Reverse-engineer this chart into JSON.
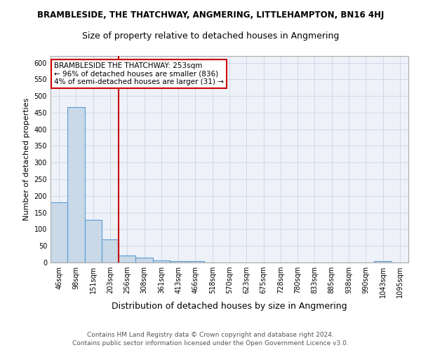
{
  "title": "BRAMBLESIDE, THE THATCHWAY, ANGMERING, LITTLEHAMPTON, BN16 4HJ",
  "subtitle": "Size of property relative to detached houses in Angmering",
  "xlabel": "Distribution of detached houses by size in Angmering",
  "ylabel": "Number of detached properties",
  "bin_labels": [
    "46sqm",
    "98sqm",
    "151sqm",
    "203sqm",
    "256sqm",
    "308sqm",
    "361sqm",
    "413sqm",
    "466sqm",
    "518sqm",
    "570sqm",
    "623sqm",
    "675sqm",
    "728sqm",
    "780sqm",
    "833sqm",
    "885sqm",
    "938sqm",
    "990sqm",
    "1043sqm",
    "1095sqm"
  ],
  "bin_counts": [
    180,
    467,
    128,
    70,
    20,
    14,
    6,
    5,
    5,
    0,
    0,
    0,
    0,
    0,
    0,
    0,
    0,
    0,
    0,
    5,
    0
  ],
  "bar_color": "#c9d9e8",
  "bar_edge_color": "#5b9bd5",
  "grid_color": "#d0d8e8",
  "background_color": "#eef2f8",
  "vline_x_index": 4,
  "vline_color": "#cc0000",
  "annotation_text": "BRAMBLESIDE THE THATCHWAY: 253sqm\n← 96% of detached houses are smaller (836)\n4% of semi-detached houses are larger (31) →",
  "annotation_box_color": "white",
  "annotation_box_edge": "#cc0000",
  "ylim": [
    0,
    620
  ],
  "yticks": [
    0,
    50,
    100,
    150,
    200,
    250,
    300,
    350,
    400,
    450,
    500,
    550,
    600
  ],
  "footer_text": "Contains HM Land Registry data © Crown copyright and database right 2024.\nContains public sector information licensed under the Open Government Licence v3.0.",
  "title_fontsize": 8.5,
  "subtitle_fontsize": 9,
  "xlabel_fontsize": 9,
  "ylabel_fontsize": 8,
  "tick_fontsize": 7,
  "footer_fontsize": 6.5,
  "annotation_fontsize": 7.5
}
